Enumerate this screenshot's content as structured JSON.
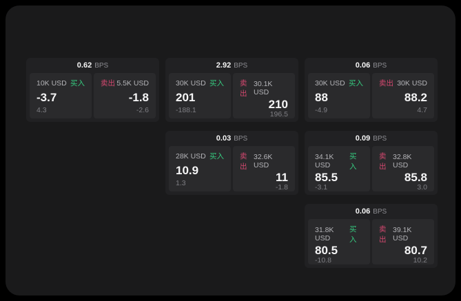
{
  "labels": {
    "buy": "买入",
    "sell": "卖出",
    "bps_unit": "BPS"
  },
  "colors": {
    "outer_background": "#000000",
    "window_background": "#1a1a1b",
    "card_background": "#212123",
    "tile_background": "#2a2a2c",
    "buy_accent": "#36c97f",
    "sell_accent": "#d4486f",
    "value_text": "#f5f5f6",
    "muted_text": "#8e8e93"
  },
  "cards": [
    {
      "bps": "0.62",
      "buy": {
        "amount": "10K USD",
        "value": "-3.7",
        "sub": "4.3"
      },
      "sell": {
        "amount": "5.5K USD",
        "value": "-1.8",
        "sub": "-2.6"
      }
    },
    {
      "bps": "2.92",
      "buy": {
        "amount": "30K USD",
        "value": "201",
        "sub": "-188.1"
      },
      "sell": {
        "amount": "30.1K USD",
        "value": "210",
        "sub": "196.5"
      }
    },
    {
      "bps": "0.06",
      "buy": {
        "amount": "30K USD",
        "value": "88",
        "sub": "-4.9"
      },
      "sell": {
        "amount": "30K USD",
        "value": "88.2",
        "sub": "4.7"
      }
    },
    {
      "bps": "0.03",
      "buy": {
        "amount": "28K USD",
        "value": "10.9",
        "sub": "1.3"
      },
      "sell": {
        "amount": "32.6K USD",
        "value": "11",
        "sub": "-1.8"
      }
    },
    {
      "bps": "0.09",
      "buy": {
        "amount": "34.1K USD",
        "value": "85.5",
        "sub": "-3.1"
      },
      "sell": {
        "amount": "32.8K USD",
        "value": "85.8",
        "sub": "3.0"
      }
    },
    {
      "bps": "0.06",
      "buy": {
        "amount": "31.8K USD",
        "value": "80.5",
        "sub": "-10.8"
      },
      "sell": {
        "amount": "39.1K USD",
        "value": "80.7",
        "sub": "10.2"
      }
    }
  ]
}
